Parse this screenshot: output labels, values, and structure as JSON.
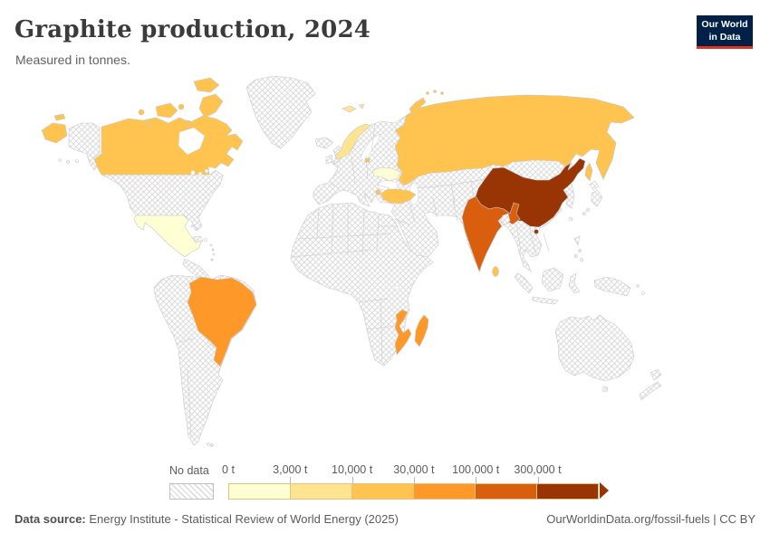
{
  "header": {
    "title": "Graphite production, 2024",
    "subtitle": "Measured in tonnes.",
    "logo": {
      "line1": "Our World",
      "line2": "in Data",
      "bg": "#002147",
      "accent": "#e0321f"
    }
  },
  "chart_data": {
    "type": "choropleth-map",
    "title": "Graphite production, 2024",
    "unit": "tonnes",
    "legend_position": "bottom",
    "no_data_label": "No data",
    "bin_edge_labels": [
      "0 t",
      "3,000 t",
      "10,000 t",
      "30,000 t",
      "100,000 t",
      "300,000 t"
    ],
    "bins": [
      {
        "range": "0 t – 3,000 t",
        "color": "#ffffd4"
      },
      {
        "range": "3,000 t – 10,000 t",
        "color": "#fee391"
      },
      {
        "range": "10,000 t – 30,000 t",
        "color": "#fec44f"
      },
      {
        "range": "30,000 t – 100,000 t",
        "color": "#fe9929"
      },
      {
        "range": "100,000 t – 300,000 t",
        "color": "#d95f0e"
      },
      {
        "range": "300,000 t +",
        "color": "#993404"
      }
    ],
    "countries": [
      {
        "id": "canada",
        "name": "Canada",
        "bin": 2
      },
      {
        "id": "mexico",
        "name": "Mexico",
        "bin": 0
      },
      {
        "id": "brazil",
        "name": "Brazil",
        "bin": 3
      },
      {
        "id": "norway",
        "name": "Norway",
        "bin": 1
      },
      {
        "id": "ukraine",
        "name": "Ukraine",
        "bin": 0
      },
      {
        "id": "russia",
        "name": "Russia",
        "bin": 2
      },
      {
        "id": "turkey",
        "name": "Turkey",
        "bin": 2
      },
      {
        "id": "china",
        "name": "China",
        "bin": 5
      },
      {
        "id": "india",
        "name": "India",
        "bin": 4
      },
      {
        "id": "srilanka",
        "name": "Sri Lanka",
        "bin": 2
      },
      {
        "id": "mozambique",
        "name": "Mozambique",
        "bin": 3
      },
      {
        "id": "madagascar",
        "name": "Madagascar",
        "bin": 3
      }
    ],
    "all_other_countries": "No data (hatched)"
  },
  "footer": {
    "source_label": "Data source:",
    "source": "Energy Institute - Statistical Review of World Energy (2025)",
    "attribution": "OurWorldinData.org/fossil-fuels | CC BY"
  }
}
